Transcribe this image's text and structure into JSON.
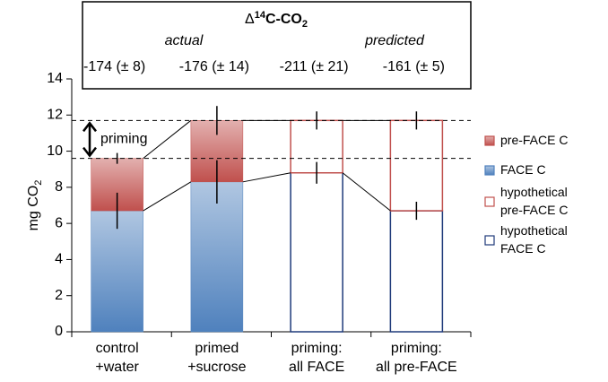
{
  "chart_data": {
    "type": "stacked_bar",
    "box_title_parts": [
      "Δ",
      "14",
      "C-CO",
      "2"
    ],
    "box_labels": [
      "actual",
      "predicted"
    ],
    "delta_values": [
      "-174 (± 8)",
      "-176 (± 14)",
      "-211 (± 21)",
      "-161 (± 5)"
    ],
    "ylabel_parts": [
      "mg CO",
      "2"
    ],
    "annotation": "priming",
    "categories": [
      "control\n+water",
      "primed\n+sucrose",
      "priming:\nall FACE",
      "priming:\nall pre-FACE"
    ],
    "series": [
      {
        "name": "pre-FACE C",
        "color": "#c0504d",
        "style": "filled",
        "values": [
          2.9,
          3.4,
          null,
          null
        ],
        "errors": [
          0.3,
          0.8,
          null,
          null
        ]
      },
      {
        "name": "FACE C",
        "color": "#4f81bd",
        "style": "filled",
        "values": [
          6.7,
          8.3,
          null,
          null
        ],
        "errors": [
          1.0,
          1.2,
          null,
          null
        ]
      },
      {
        "name": "hypothetical\npre-FACE C",
        "color": "#c0504d",
        "style": "outline",
        "values": [
          null,
          null,
          2.9,
          5.0
        ],
        "errors": [
          null,
          null,
          0.5,
          0.5
        ]
      },
      {
        "name": "hypothetical\nFACE C",
        "color": "#1f3a7a",
        "style": "outline",
        "values": [
          null,
          null,
          8.8,
          6.7
        ],
        "errors": [
          null,
          null,
          0.6,
          0.5
        ]
      }
    ],
    "ylim": [
      0,
      14
    ],
    "yticks": [
      0,
      2,
      4,
      6,
      8,
      10,
      12,
      14
    ]
  }
}
